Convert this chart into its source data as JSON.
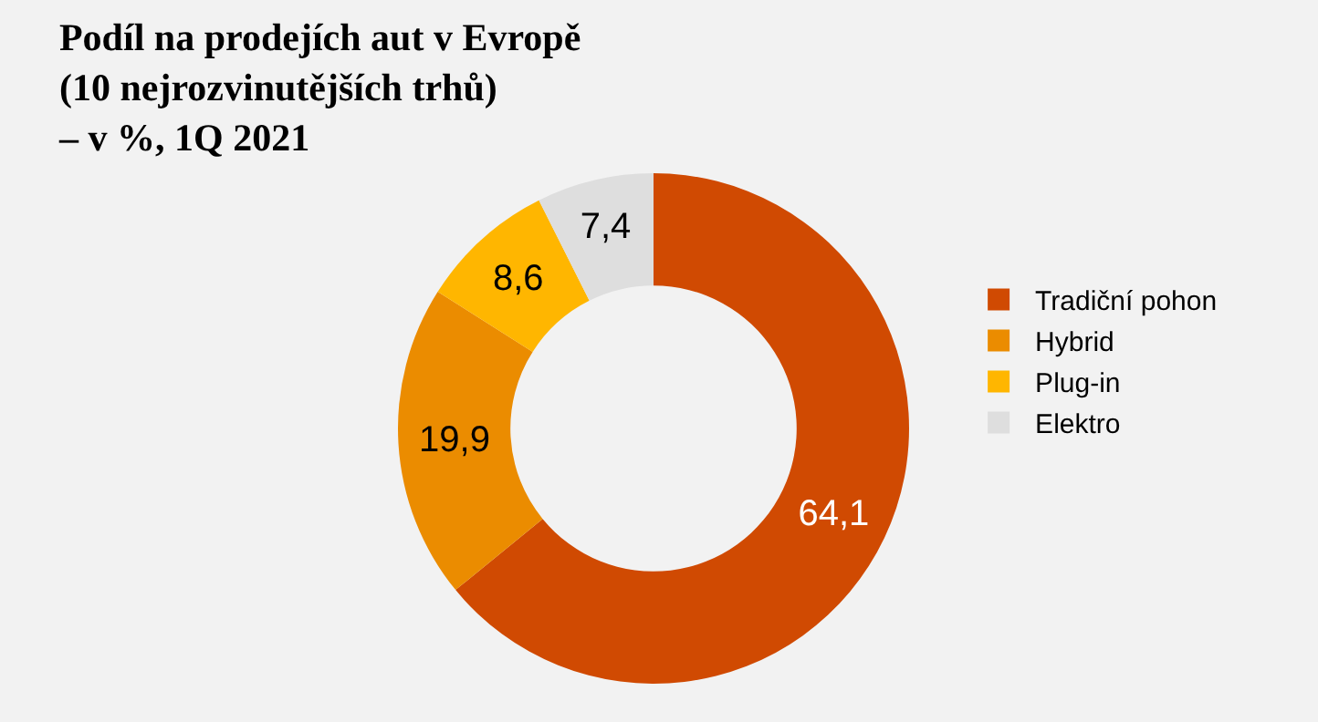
{
  "chart_data": {
    "type": "donut",
    "title": "Podíl na prodejích aut v Evropě\n(10 nejrozvinutějších trhů)\n– v %, 1Q 2021",
    "categories": [
      "Tradiční pohon",
      "Hybrid",
      "Plug-in",
      "Elektro"
    ],
    "values": [
      64.1,
      19.9,
      8.6,
      7.4
    ],
    "colors": [
      "#d04a02",
      "#eb8c00",
      "#ffb600",
      "#dedede"
    ],
    "value_labels": [
      "64,1",
      "19,9",
      "8,6",
      "7,4"
    ],
    "legend": "right"
  }
}
